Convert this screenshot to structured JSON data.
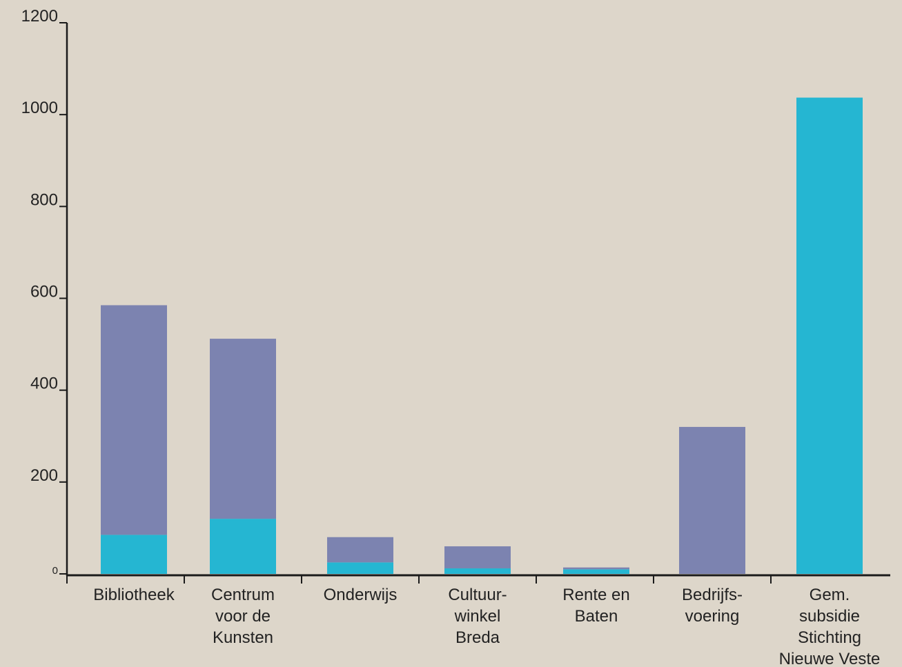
{
  "chart_data": {
    "type": "bar",
    "stacked": true,
    "categories": [
      [
        "Bibliotheek"
      ],
      [
        "Centrum",
        "voor de",
        "Kunsten"
      ],
      [
        "Onderwijs"
      ],
      [
        "Cultuur-",
        "winkel",
        "Breda"
      ],
      [
        "Rente en",
        "Baten"
      ],
      [
        "Bedrijfs-",
        "voering"
      ],
      [
        "Gem.",
        "subsidie",
        "Stichting",
        "Nieuwe Veste"
      ]
    ],
    "series": [
      {
        "color": "#25b6d2",
        "values": [
          85,
          120,
          25,
          12,
          10,
          0,
          1037
        ]
      },
      {
        "color": "#7c83b0",
        "values": [
          500,
          392,
          55,
          48,
          4,
          320,
          0
        ]
      }
    ],
    "yticks": [
      "0",
      "200",
      "400",
      "600",
      "800",
      "1000",
      "1200"
    ],
    "ylim": [
      0,
      1200
    ],
    "title": "",
    "xlabel": "",
    "ylabel": "",
    "grid": false,
    "colors": {
      "background": "#ddd6ca",
      "axis": "#1a1a1a"
    }
  }
}
